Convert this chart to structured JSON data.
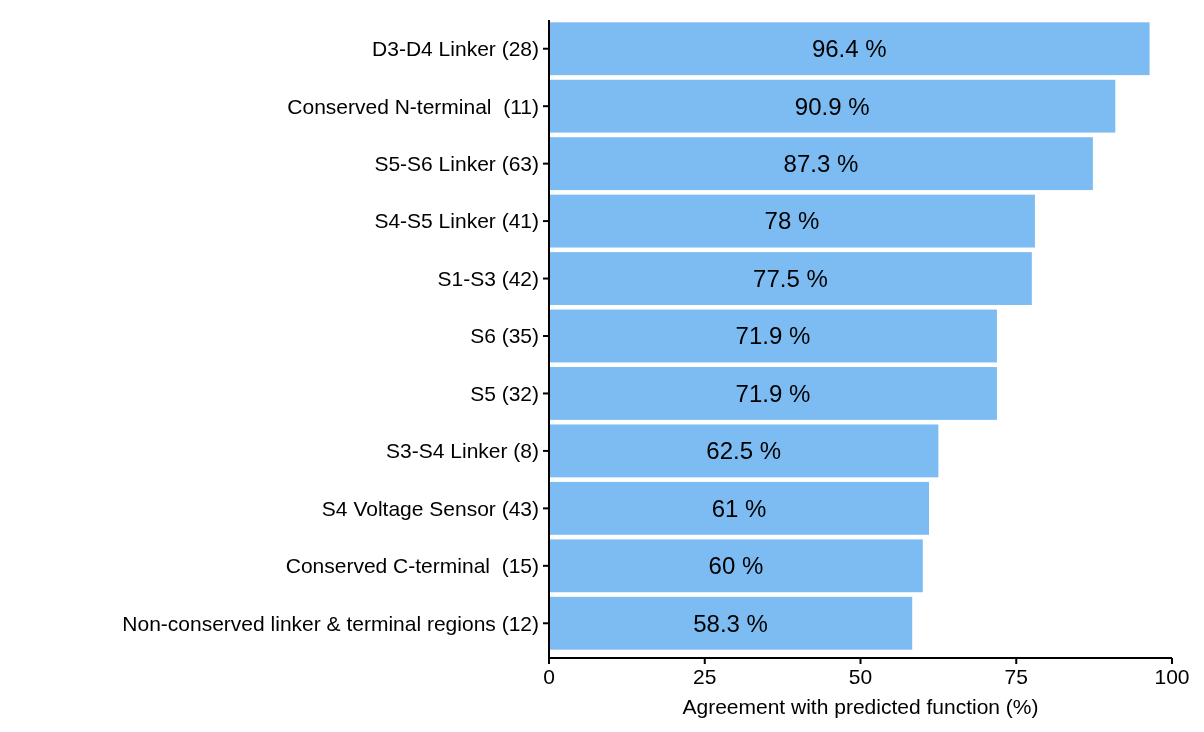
{
  "chart_data": {
    "type": "bar",
    "orientation": "horizontal",
    "xlabel": "Agreement with predicted function (%)",
    "categories": [
      "D3-D4 Linker (28)",
      "Conserved N-terminal  (11)",
      "S5-S6 Linker (63)",
      "S4-S5 Linker (41)",
      "S1-S3 (42)",
      "S6 (35)",
      "S5 (32)",
      "S3-S4 Linker (8)",
      "S4 Voltage Sensor (43)",
      "Conserved C-terminal  (15)",
      "Non-conserved linker & terminal regions (12)"
    ],
    "values": [
      96.4,
      90.9,
      87.3,
      78,
      77.5,
      71.9,
      71.9,
      62.5,
      61,
      60,
      58.3
    ],
    "value_labels": [
      "96.4 %",
      "90.9 %",
      "87.3 %",
      "78 %",
      "77.5 %",
      "71.9 %",
      "71.9 %",
      "62.5 %",
      "61 %",
      "60 %",
      "58.3 %"
    ],
    "color": "#7dbcf2",
    "xlim": [
      0,
      100
    ],
    "xticks": [
      0,
      25,
      50,
      75,
      100
    ],
    "grid": false
  }
}
